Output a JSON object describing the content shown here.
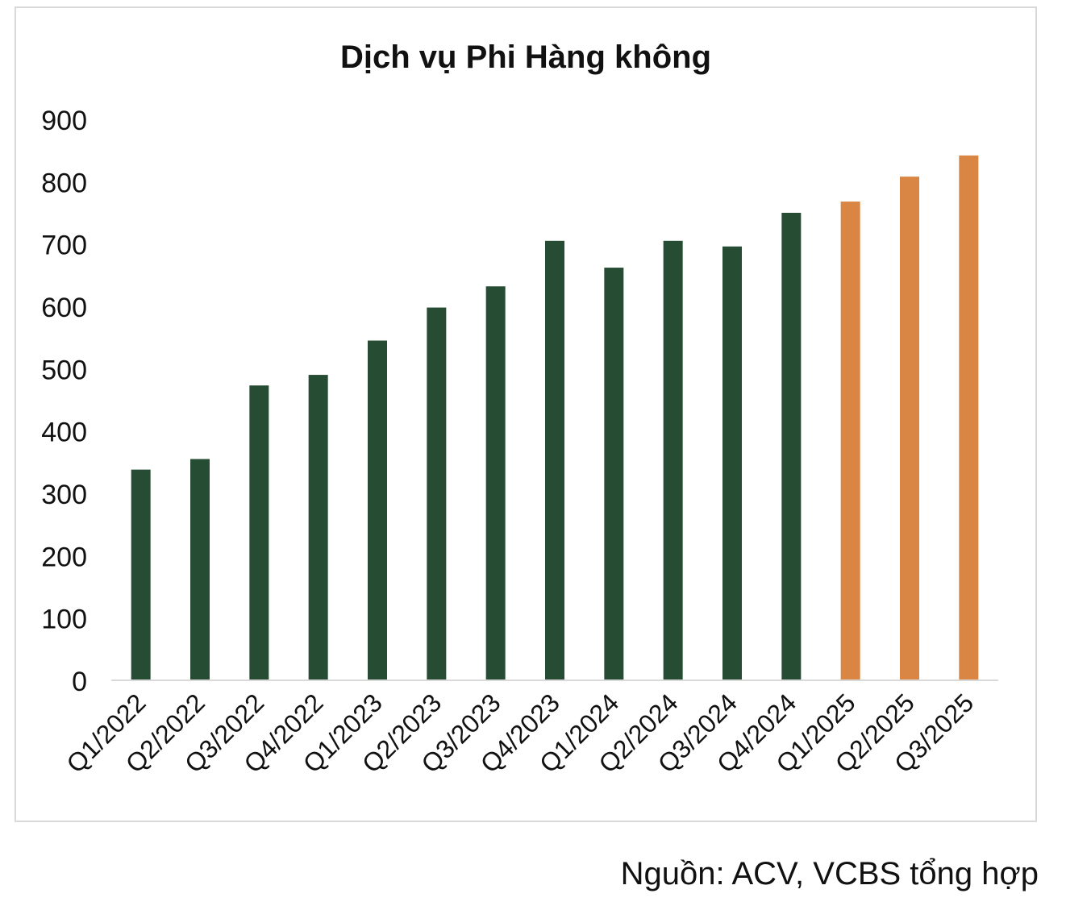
{
  "chart_data": {
    "type": "bar",
    "title": "Dịch vụ Phi Hàng không",
    "xlabel": "",
    "ylabel": "",
    "categories": [
      "Q1/2022",
      "Q2/2022",
      "Q3/2022",
      "Q4/2022",
      "Q1/2023",
      "Q2/2023",
      "Q3/2023",
      "Q4/2023",
      "Q1/2024",
      "Q2/2024",
      "Q3/2024",
      "Q4/2024",
      "Q1/2025",
      "Q2/2025",
      "Q3/2025"
    ],
    "values": [
      338,
      355,
      473,
      490,
      545,
      598,
      632,
      705,
      662,
      705,
      696,
      750,
      768,
      808,
      842
    ],
    "bar_colors": [
      "#264d33",
      "#264d33",
      "#264d33",
      "#264d33",
      "#264d33",
      "#264d33",
      "#264d33",
      "#264d33",
      "#264d33",
      "#264d33",
      "#264d33",
      "#264d33",
      "#d98543",
      "#d98543",
      "#d98543"
    ],
    "ylim": [
      0,
      900
    ],
    "yticks": [
      0,
      100,
      200,
      300,
      400,
      500,
      600,
      700,
      800,
      900
    ],
    "grid": false,
    "legend": "none"
  },
  "source": "Nguồn: ACV, VCBS tổng hợp"
}
